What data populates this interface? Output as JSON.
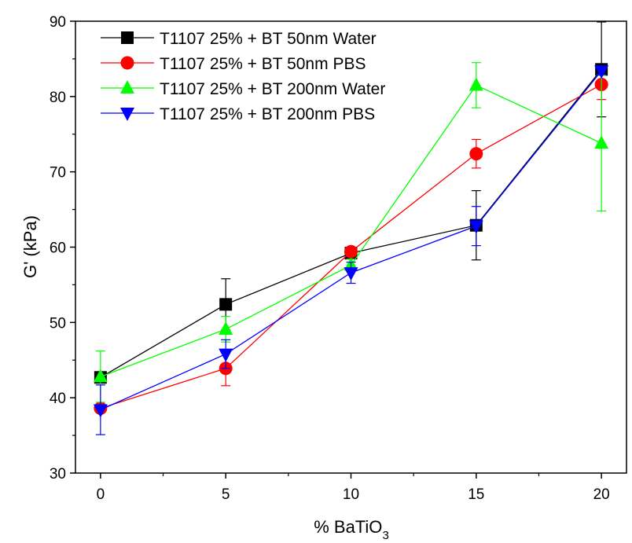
{
  "chart_data": {
    "type": "line",
    "xlabel_main": "% BaTiO",
    "xlabel_sub": "3",
    "ylabel": "G' (kPa)",
    "xlim": [
      -1,
      21
    ],
    "ylim": [
      30,
      90
    ],
    "xticks": [
      "0",
      "5",
      "10",
      "15",
      "20"
    ],
    "yticks": [
      "30",
      "40",
      "50",
      "60",
      "70",
      "80",
      "90"
    ],
    "legend_position": "top-left",
    "x": [
      0,
      5,
      10,
      15,
      20
    ],
    "series": [
      {
        "name": "T1107 25% + BT 50nm Water",
        "color": "#000000",
        "marker": "square",
        "values": [
          42.7,
          52.4,
          59.2,
          62.9,
          83.6
        ],
        "err": [
          0.6,
          3.4,
          0.6,
          4.6,
          6.3
        ]
      },
      {
        "name": "T1107 25% + BT 50nm PBS",
        "color": "#ff0000",
        "marker": "circle",
        "values": [
          38.6,
          43.9,
          59.4,
          72.4,
          81.6
        ],
        "err": [
          0.4,
          2.3,
          0.6,
          1.9,
          2.0
        ]
      },
      {
        "name": "T1107 25% + BT 200nm Water",
        "color": "#00ff00",
        "marker": "triangle-up",
        "values": [
          42.8,
          49.1,
          57.6,
          81.5,
          73.8
        ],
        "err": [
          3.4,
          1.7,
          0.8,
          3.0,
          9.0
        ]
      },
      {
        "name": "T1107 25% + BT 200nm PBS",
        "color": "#0000ff",
        "marker": "triangle-down",
        "values": [
          38.4,
          45.8,
          56.6,
          62.8,
          83.4
        ],
        "err": [
          3.3,
          1.9,
          1.4,
          2.6,
          0.4
        ]
      }
    ]
  }
}
